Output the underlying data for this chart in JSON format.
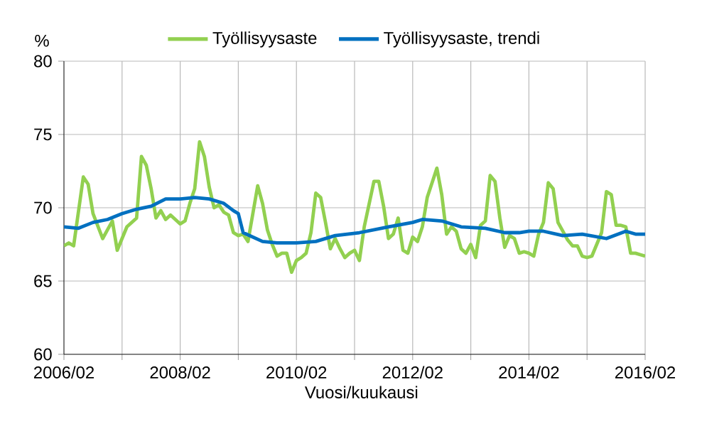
{
  "chart_data": {
    "type": "line",
    "ylabel": "%",
    "xlabel": "Vuosi/kuukausi",
    "x": [
      "2006-02",
      "2006-03",
      "2006-04",
      "2006-06",
      "2006-07",
      "2006-08",
      "2006-10",
      "2006-11",
      "2006-12",
      "2007-01",
      "2007-02",
      "2007-03",
      "2007-05",
      "2007-06",
      "2007-07",
      "2007-08",
      "2007-09",
      "2007-10",
      "2007-11",
      "2007-12",
      "2008-02",
      "2008-03",
      "2008-04",
      "2008-05",
      "2008-06",
      "2008-07",
      "2008-08",
      "2008-09",
      "2008-10",
      "2008-11",
      "2008-12",
      "2009-01",
      "2009-02",
      "2009-03",
      "2009-04",
      "2009-06",
      "2009-07",
      "2009-08",
      "2009-09",
      "2009-10",
      "2009-11",
      "2009-12",
      "2010-01",
      "2010-02",
      "2010-03",
      "2010-04",
      "2010-05",
      "2010-06",
      "2010-07",
      "2010-08",
      "2010-09",
      "2010-10",
      "2010-11",
      "2010-12",
      "2011-01",
      "2011-02",
      "2011-03",
      "2011-04",
      "2011-06",
      "2011-07",
      "2011-08",
      "2011-09",
      "2011-10",
      "2011-11",
      "2011-12",
      "2012-01",
      "2012-02",
      "2012-03",
      "2012-04",
      "2012-05",
      "2012-07",
      "2012-08",
      "2012-09",
      "2012-10",
      "2012-11",
      "2012-12",
      "2013-01",
      "2013-02",
      "2013-03",
      "2013-04",
      "2013-05",
      "2013-06",
      "2013-07",
      "2013-08",
      "2013-09",
      "2013-10",
      "2013-11",
      "2013-12",
      "2014-01",
      "2014-02",
      "2014-03",
      "2014-04",
      "2014-05",
      "2014-06",
      "2014-07",
      "2014-08",
      "2014-09",
      "2014-10",
      "2014-11",
      "2014-12",
      "2015-01",
      "2015-02",
      "2015-03",
      "2015-04",
      "2015-05",
      "2015-06",
      "2015-07",
      "2015-08",
      "2015-09",
      "2015-10",
      "2015-11",
      "2015-12",
      "2016-01",
      "2016-02"
    ],
    "series": [
      {
        "name": "Työllisyysaste",
        "color": "#92d050",
        "values": [
          67.4,
          67.6,
          67.4,
          72.1,
          71.6,
          69.6,
          67.9,
          68.5,
          69.1,
          67.1,
          67.9,
          68.7,
          69.3,
          73.5,
          72.9,
          71.3,
          69.3,
          69.8,
          69.2,
          69.5,
          68.9,
          69.1,
          70.3,
          71.3,
          74.5,
          73.5,
          71.4,
          70.0,
          70.2,
          69.7,
          69.5,
          68.3,
          68.1,
          68.2,
          67.7,
          71.5,
          70.3,
          68.5,
          67.5,
          66.7,
          66.9,
          66.9,
          65.6,
          66.4,
          66.6,
          66.9,
          68.3,
          71.0,
          70.7,
          69.0,
          67.2,
          67.9,
          67.2,
          66.6,
          66.9,
          67.1,
          66.4,
          68.7,
          71.8,
          71.8,
          70.1,
          67.9,
          68.2,
          69.3,
          67.1,
          66.9,
          68.0,
          67.7,
          68.7,
          70.7,
          72.7,
          70.9,
          68.2,
          68.7,
          68.4,
          67.2,
          66.9,
          67.5,
          66.6,
          68.8,
          69.1,
          72.2,
          71.8,
          69.3,
          67.3,
          68.1,
          67.9,
          66.9,
          67.0,
          66.9,
          66.7,
          68.2,
          69.0,
          71.7,
          71.3,
          69.0,
          68.4,
          67.8,
          67.4,
          67.4,
          66.7,
          66.6,
          66.7,
          67.5,
          68.3,
          71.1,
          70.9,
          68.8,
          68.8,
          68.7,
          66.9,
          66.9,
          66.8,
          66.7
        ]
      },
      {
        "name": "Työllisyysaste, trendi",
        "color": "#0070c0",
        "x": [
          "2006-02",
          "2006-05",
          "2006-08",
          "2006-11",
          "2007-02",
          "2007-05",
          "2007-08",
          "2007-11",
          "2008-02",
          "2008-05",
          "2008-08",
          "2008-11",
          "2009-01",
          "2009-02",
          "2009-03",
          "2009-05",
          "2009-07",
          "2009-10",
          "2010-02",
          "2010-06",
          "2010-10",
          "2011-03",
          "2011-09",
          "2012-02",
          "2012-04",
          "2012-08",
          "2012-12",
          "2013-05",
          "2013-09",
          "2013-12",
          "2014-02",
          "2014-05",
          "2014-09",
          "2015-01",
          "2015-06",
          "2015-10",
          "2015-12",
          "2016-02"
        ],
        "values": [
          68.7,
          68.6,
          69.0,
          69.2,
          69.6,
          69.9,
          70.1,
          70.6,
          70.6,
          70.7,
          70.6,
          70.3,
          69.8,
          69.6,
          68.3,
          68.0,
          67.7,
          67.6,
          67.6,
          67.7,
          68.1,
          68.3,
          68.7,
          69.0,
          69.2,
          69.1,
          68.7,
          68.6,
          68.3,
          68.3,
          68.4,
          68.4,
          68.1,
          68.2,
          67.9,
          68.4,
          68.2,
          68.2
        ]
      }
    ],
    "xlim": [
      "2006-02",
      "2016-02"
    ],
    "xticks": [
      {
        "value": "2006-02",
        "label": "2006/02"
      },
      {
        "value": "2007-02",
        "label": null
      },
      {
        "value": "2008-02",
        "label": "2008/02"
      },
      {
        "value": "2009-02",
        "label": null
      },
      {
        "value": "2010-02",
        "label": "2010/02"
      },
      {
        "value": "2011-02",
        "label": null
      },
      {
        "value": "2012-02",
        "label": "2012/02"
      },
      {
        "value": "2013-02",
        "label": null
      },
      {
        "value": "2014-02",
        "label": "2014/02"
      },
      {
        "value": "2015-02",
        "label": null
      },
      {
        "value": "2016-02",
        "label": "2016/02"
      }
    ],
    "ylim": [
      60,
      80
    ],
    "yticks": [
      60,
      65,
      70,
      75,
      80
    ],
    "grid": true,
    "legend": "top",
    "marker": "none",
    "line_style": "solid"
  }
}
